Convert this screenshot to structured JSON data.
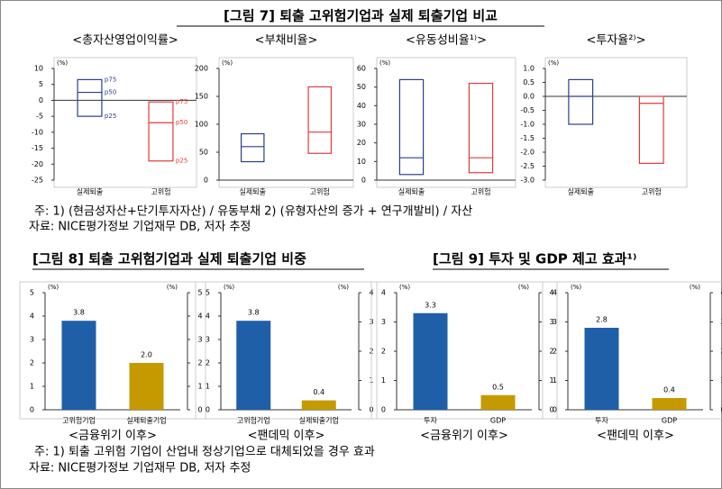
{
  "fig7": {
    "title": "[그림 7] 퇴출 고위험기업과 실제 퇴출기업 비교",
    "note": "주: 1) (현금성자산+단기투자자산) / 유동부채   2) (유형자산의 증가 + 연구개발비) / 자산",
    "source": "자료: NICE평가정보 기업재무 DB, 저자 추정"
  },
  "fig8": {
    "title": "[그림 8] 퇴출 고위험기업과 실제 퇴출기업 비중"
  },
  "fig9": {
    "title": "[그림 9] 투자 및 GDP 제고 효과¹⁾"
  },
  "notes_bottom": {
    "note": "주: 1) 퇴출 고위험 기업이 산업내 정상기업으로 대체되었을 경우 효과",
    "source": "자료: NICE평가정보 기업재무 DB, 저자 추정"
  },
  "chart_data": [
    {
      "type": "box",
      "title": "<총자산영업이익률>",
      "unit": "(%)",
      "categories": [
        "실제퇴출",
        "고위험"
      ],
      "colors": [
        "#2a3f8f",
        "#e23a3a"
      ],
      "p25": [
        -5,
        -19
      ],
      "p50": [
        2.5,
        -7
      ],
      "p75": [
        6.5,
        -0.5
      ],
      "quantile_labels": [
        "p25",
        "p50",
        "p75"
      ],
      "ylim": [
        -25,
        10
      ],
      "yticks": [
        -25,
        -20,
        -15,
        -10,
        -5,
        0,
        5,
        10
      ]
    },
    {
      "type": "box",
      "title": "<부채비율>",
      "unit": "(%)",
      "categories": [
        "실제퇴출",
        "고위험"
      ],
      "colors": [
        "#2a3f8f",
        "#e23a3a"
      ],
      "p25": [
        33,
        48
      ],
      "p50": [
        60,
        86
      ],
      "p75": [
        83,
        167
      ],
      "ylim": [
        0,
        200
      ],
      "yticks": [
        0,
        50,
        100,
        150,
        200
      ]
    },
    {
      "type": "box",
      "title": "<유동성비율¹⁾>",
      "unit": "(%)",
      "categories": [
        "실제퇴출",
        "고위험"
      ],
      "colors": [
        "#2a3f8f",
        "#e23a3a"
      ],
      "p25": [
        3,
        4
      ],
      "p50": [
        12,
        12
      ],
      "p75": [
        54,
        52
      ],
      "ylim": [
        0,
        60
      ],
      "yticks": [
        0,
        10,
        20,
        30,
        40,
        50,
        60
      ]
    },
    {
      "type": "box",
      "title": "<투자율²⁾>",
      "unit": "(%)",
      "categories": [
        "실제퇴출",
        "고위험"
      ],
      "colors": [
        "#2a3f8f",
        "#e23a3a"
      ],
      "p25": [
        -1.0,
        -2.4
      ],
      "p50": [
        0.0,
        -0.25
      ],
      "p75": [
        0.6,
        0.0
      ],
      "ylim": [
        -3,
        1
      ],
      "yticks": [
        {
          "value": -3,
          "label": "-3.0"
        },
        -2.5,
        {
          "value": -2,
          "label": "-2.0"
        },
        -1.5,
        {
          "value": -1,
          "label": "-1.0"
        },
        -0.5,
        {
          "value": 0,
          "label": "0.0"
        },
        0.5,
        {
          "value": 1,
          "label": "1.0"
        }
      ]
    },
    {
      "type": "bar",
      "title": "<금융위기 이후>",
      "unit": "(%)",
      "unit2": "(%)",
      "categories": [
        "고위험기업",
        "실제퇴출기업"
      ],
      "colors": [
        "#1f5fa8",
        "#c49a00"
      ],
      "values": [
        3.8,
        2.0
      ],
      "value_labels": [
        "3.8",
        "2.0"
      ],
      "ylim": [
        0,
        5
      ],
      "yticks": [
        0,
        1,
        2,
        3,
        4,
        5
      ],
      "y2lim": [
        0,
        5
      ],
      "y2ticks": [
        0,
        1,
        2,
        3,
        4,
        5
      ]
    },
    {
      "type": "bar",
      "title": "<팬데믹 이후>",
      "unit": "(%)",
      "unit2": "(%)",
      "categories": [
        "고위험기업",
        "실제퇴출기업"
      ],
      "colors": [
        "#1f5fa8",
        "#c49a00"
      ],
      "values": [
        3.8,
        0.4
      ],
      "ylim": [
        0,
        5
      ],
      "yticks": [
        0,
        1,
        2,
        3,
        4,
        5
      ],
      "y2lim": [
        0,
        4
      ],
      "y2ticks": [
        0,
        1,
        2,
        3,
        4
      ]
    },
    {
      "type": "bar",
      "title": "<금융위기 이후>",
      "unit": "(%)",
      "unit2": "(%)",
      "categories": [
        "투자",
        "GDP"
      ],
      "colors": [
        "#1f5fa8",
        "#c49a00"
      ],
      "values": [
        3.3,
        0.5
      ],
      "ylim": [
        0,
        4
      ],
      "yticks": [
        0,
        1,
        2,
        3,
        4
      ],
      "y2lim": [
        0,
        4
      ],
      "y2ticks": [
        0,
        1,
        2,
        3,
        4
      ]
    },
    {
      "type": "bar",
      "title": "<팬데믹 이후>",
      "unit": "(%)",
      "unit2": "(%)",
      "categories": [
        "투자",
        "GDP"
      ],
      "colors": [
        "#1f5fa8",
        "#c49a00"
      ],
      "values": [
        2.8,
        0.4
      ],
      "ylim": [
        0,
        4
      ],
      "yticks": [
        0,
        1,
        2,
        3,
        4
      ],
      "y2lim": [
        0,
        4
      ],
      "y2ticks": [
        0,
        1,
        2,
        3,
        4
      ]
    }
  ]
}
